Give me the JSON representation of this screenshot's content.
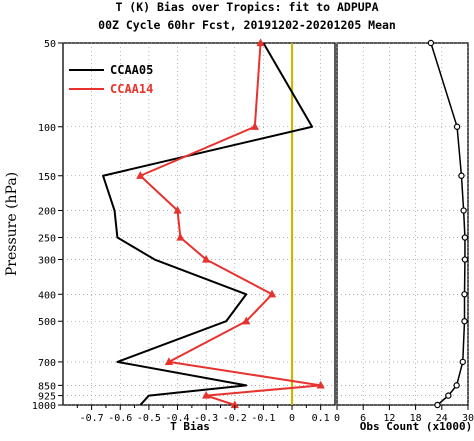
{
  "header": {
    "title_line1": "T (K) Bias over Tropics: fit to ADPUPA",
    "title_line2": "00Z Cycle 60hr Fcst, 20191202-20201205 Mean"
  },
  "colors": {
    "ccaa05": "#000000",
    "ccaa14": "#e8322e",
    "zero_line": "#c9b800",
    "frame": "#000000"
  },
  "chart_data": [
    {
      "type": "line",
      "orientation": "vertical-profile",
      "xlabel": "T Bias",
      "ylabel": "Pressure (hPa)",
      "xlim": [
        -0.8,
        0.15
      ],
      "ylim": [
        1000,
        50
      ],
      "y_scale": "log",
      "x_ticks": [
        -0.7,
        -0.6,
        -0.5,
        -0.4,
        -0.3,
        -0.2,
        -0.1,
        0,
        0.1
      ],
      "x_tick_labels": [
        "-0.7",
        "-0.6",
        "-0.5",
        "-0.4",
        "-0.3",
        "-0.2",
        "-0.1",
        "0",
        "0.1"
      ],
      "y_ticks": [
        50,
        100,
        150,
        200,
        250,
        300,
        400,
        500,
        700,
        850,
        925,
        1000
      ],
      "y_tick_labels": [
        "50",
        "100",
        "150",
        "200",
        "250",
        "300",
        "400",
        "500",
        "700",
        "850",
        "925",
        "1000"
      ],
      "reference_line_x": 0,
      "legend_position": "top-left",
      "series": [
        {
          "name": "CCAA05",
          "color": "#000000",
          "marker": "none",
          "pressure": [
            50,
            100,
            150,
            200,
            250,
            300,
            400,
            500,
            700,
            850,
            925,
            1000
          ],
          "values": [
            -0.1,
            0.07,
            -0.66,
            -0.62,
            -0.61,
            -0.48,
            -0.16,
            -0.23,
            -0.61,
            -0.16,
            -0.5,
            -0.53
          ]
        },
        {
          "name": "CCAA14",
          "color": "#e8322e",
          "marker": "triangle",
          "pressure": [
            50,
            100,
            150,
            200,
            250,
            300,
            400,
            500,
            700,
            850,
            925,
            1000
          ],
          "values": [
            -0.11,
            -0.13,
            -0.53,
            -0.4,
            -0.39,
            -0.3,
            -0.07,
            -0.16,
            -0.43,
            0.1,
            -0.3,
            -0.2
          ]
        }
      ]
    },
    {
      "type": "line",
      "orientation": "vertical-profile",
      "xlabel": "Obs Count (x1000)",
      "xlim": [
        0,
        30
      ],
      "ylim": [
        1000,
        50
      ],
      "y_scale": "log",
      "x_ticks": [
        0,
        6,
        12,
        18,
        24,
        30
      ],
      "x_tick_labels": [
        "0",
        "6",
        "12",
        "18",
        "24",
        "30"
      ],
      "series": [
        {
          "color": "#000000",
          "marker": "circle",
          "pressure": [
            50,
            100,
            150,
            200,
            250,
            300,
            400,
            500,
            700,
            850,
            925,
            1000
          ],
          "values": [
            21.5,
            27.5,
            28.5,
            29,
            29.3,
            29.3,
            29.2,
            29.2,
            28.8,
            27.4,
            25.5,
            23
          ]
        }
      ]
    }
  ]
}
